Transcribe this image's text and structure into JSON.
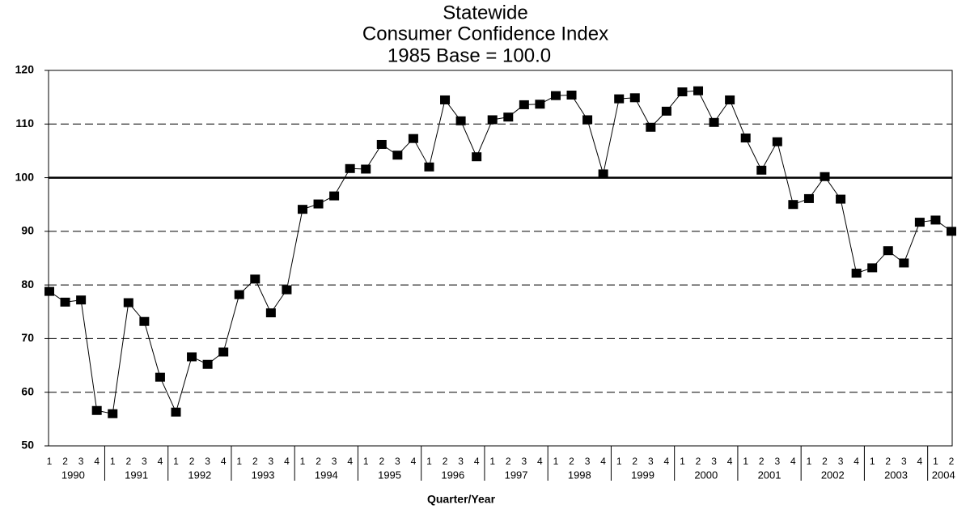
{
  "chart_data": {
    "type": "line",
    "title": [
      "Statewide",
      "Consumer Confidence Index",
      "1985 Base = 100.0"
    ],
    "x_label": "Quarter/Year",
    "categories": [
      "1",
      "2",
      "3",
      "4",
      "1",
      "2",
      "3",
      "4",
      "1",
      "2",
      "3",
      "4",
      "1",
      "2",
      "3",
      "4",
      "1",
      "2",
      "3",
      "4",
      "1",
      "2",
      "3",
      "4",
      "1",
      "2",
      "3",
      "4",
      "1",
      "2",
      "3",
      "4",
      "1",
      "2",
      "3",
      "4",
      "1",
      "2",
      "3",
      "4",
      "1",
      "2",
      "3",
      "4",
      "1",
      "2",
      "3",
      "4",
      "1",
      "2",
      "3",
      "4",
      "1",
      "2",
      "3",
      "4",
      "1",
      "2"
    ],
    "groups": [
      "1990",
      "1991",
      "1992",
      "1993",
      "1994",
      "1995",
      "1996",
      "1997",
      "1998",
      "1999",
      "2000",
      "2001",
      "2002",
      "2003",
      "2004"
    ],
    "series": [
      {
        "name": "Consumer Confidence Index",
        "color": "#000000",
        "values": [
          78.8,
          76.8,
          77.2,
          56.6,
          56.0,
          76.7,
          73.2,
          62.8,
          56.3,
          66.6,
          65.2,
          67.5,
          78.2,
          81.1,
          74.8,
          79.1,
          94.1,
          95.1,
          96.6,
          101.7,
          101.6,
          106.2,
          104.2,
          107.3,
          102.0,
          114.5,
          110.6,
          103.9,
          110.8,
          111.3,
          113.6,
          113.7,
          115.3,
          115.4,
          110.8,
          100.7,
          114.7,
          114.9,
          109.4,
          112.4,
          116.0,
          116.2,
          110.3,
          114.5,
          107.4,
          101.4,
          106.7,
          95.0,
          96.1,
          100.2,
          96.0,
          82.2,
          83.2,
          86.4,
          84.1,
          91.7,
          92.1,
          90.0
        ]
      }
    ],
    "ylim": [
      50,
      120
    ],
    "yticks": [
      50,
      60,
      70,
      80,
      90,
      100,
      110,
      120
    ],
    "grid": true,
    "reference_line": 100
  }
}
